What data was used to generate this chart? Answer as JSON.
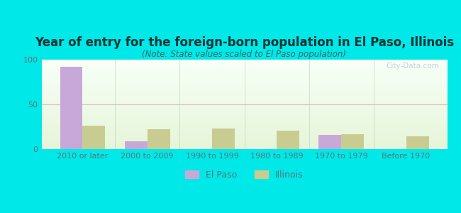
{
  "title": "Year of entry for the foreign-born population in El Paso, Illinois",
  "subtitle": "(Note: State values scaled to El Paso population)",
  "categories": [
    "2010 or later",
    "2000 to 2009",
    "1990 to 1999",
    "1980 to 1989",
    "1970 to 1979",
    "Before 1970"
  ],
  "el_paso_values": [
    92,
    9,
    0,
    0,
    16,
    0
  ],
  "illinois_values": [
    26,
    22,
    23,
    21,
    17,
    14
  ],
  "el_paso_color": "#c8a8d8",
  "illinois_color": "#c8cc90",
  "background_outer": "#00e8e8",
  "ylim": [
    0,
    100
  ],
  "yticks": [
    0,
    50,
    100
  ],
  "bar_width": 0.35,
  "watermark": "City-Data.com",
  "title_fontsize": 12,
  "subtitle_fontsize": 8.5,
  "tick_fontsize": 8,
  "legend_fontsize": 9,
  "title_color": "#003333",
  "subtitle_color": "#336666",
  "tick_color": "#557777"
}
